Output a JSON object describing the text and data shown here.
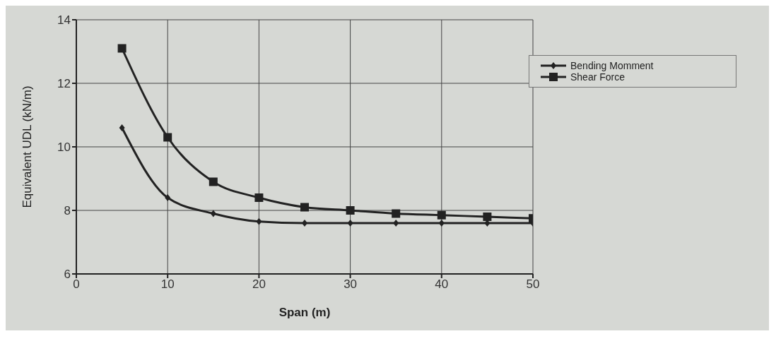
{
  "chart_data": {
    "type": "line",
    "xlabel": "Span (m)",
    "ylabel": "Equivalent UDL (kN/m)",
    "x": [
      5,
      10,
      15,
      20,
      25,
      30,
      35,
      40,
      45,
      50
    ],
    "series": [
      {
        "name": "Bending Momment",
        "color": "#222222",
        "marker": "diamond",
        "values": [
          10.6,
          8.4,
          7.9,
          7.65,
          7.6,
          7.6,
          7.6,
          7.6,
          7.6,
          7.6
        ]
      },
      {
        "name": "Shear Force",
        "color": "#222222",
        "marker": "square",
        "values": [
          13.1,
          10.3,
          8.9,
          8.4,
          8.1,
          8.0,
          7.9,
          7.85,
          7.8,
          7.75
        ]
      }
    ],
    "xlim": [
      0,
      50
    ],
    "xticks": [
      0,
      10,
      20,
      30,
      40,
      50
    ],
    "ylim": [
      6,
      14
    ],
    "yticks": [
      6,
      8,
      10,
      12,
      14
    ],
    "grid": true,
    "legend": "top right",
    "line_style": "solid"
  }
}
